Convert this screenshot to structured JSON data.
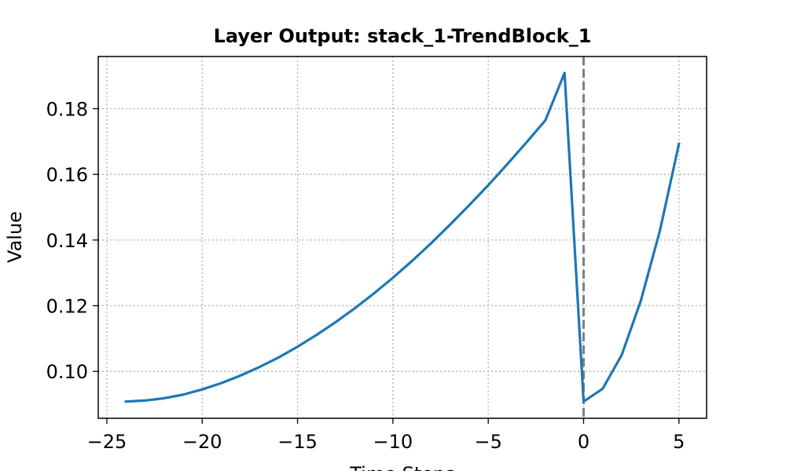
{
  "chart_data": {
    "type": "line",
    "title": "Layer Output: stack_1-TrendBlock_1",
    "xlabel": "Time Steps",
    "ylabel": "Value",
    "xlim": [
      -25.45,
      6.45
    ],
    "ylim": [
      0.0857,
      0.1959
    ],
    "xticks": [
      -25,
      -20,
      -15,
      -10,
      -5,
      0,
      5
    ],
    "xtick_labels": [
      "−25",
      "−20",
      "−15",
      "−10",
      "−5",
      "0",
      "5"
    ],
    "yticks": [
      0.1,
      0.12,
      0.14,
      0.16,
      0.18
    ],
    "ytick_labels": [
      "0.10",
      "0.12",
      "0.14",
      "0.16",
      "0.18"
    ],
    "grid": true,
    "vline": {
      "x": 0,
      "color": "#808080",
      "style": "dashed"
    },
    "series": [
      {
        "color": "#1f77b4",
        "x": [
          -24,
          -23,
          -22,
          -21,
          -20,
          -19,
          -18,
          -17,
          -16,
          -15,
          -14,
          -13,
          -12,
          -11,
          -10,
          -9,
          -8,
          -7,
          -6,
          -5,
          -4,
          -3,
          -2,
          -1,
          0,
          1,
          2,
          3,
          4,
          5
        ],
        "y": [
          0.0908,
          0.0911,
          0.0918,
          0.0929,
          0.0945,
          0.0964,
          0.0987,
          0.1013,
          0.1042,
          0.1075,
          0.1111,
          0.115,
          0.1192,
          0.1237,
          0.1285,
          0.1336,
          0.139,
          0.1447,
          0.1506,
          0.1567,
          0.1631,
          0.1697,
          0.1765,
          0.1909,
          0.0908,
          0.0947,
          0.105,
          0.1215,
          0.1428,
          0.1693
        ]
      }
    ]
  }
}
